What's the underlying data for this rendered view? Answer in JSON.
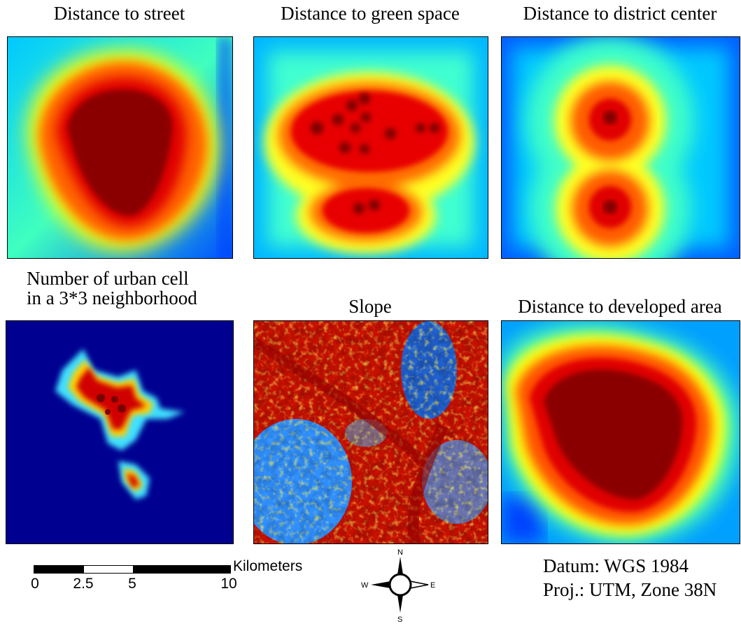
{
  "panels": [
    {
      "title": "Distance to street"
    },
    {
      "title": "Distance to green space"
    },
    {
      "title": "Distance to district center"
    },
    {
      "title_line1": "Number of urban cell",
      "title_line2": "in a 3*3 neighborhood"
    },
    {
      "title": "Slope"
    },
    {
      "title": "Distance to developed area"
    }
  ],
  "scale_bar": {
    "ticks": [
      "0",
      "2.5",
      "5",
      "10"
    ],
    "unit": "Kilometers"
  },
  "compass": {
    "n": "N",
    "s": "S",
    "e": "E",
    "w": "W"
  },
  "datum": {
    "line1": "Datum: WGS 1984",
    "line2": "Proj.: UTM, Zone 38N"
  },
  "colors": {
    "jet_low": "#00008f",
    "jet_mid": "#7fff7f",
    "jet_high": "#800000"
  }
}
